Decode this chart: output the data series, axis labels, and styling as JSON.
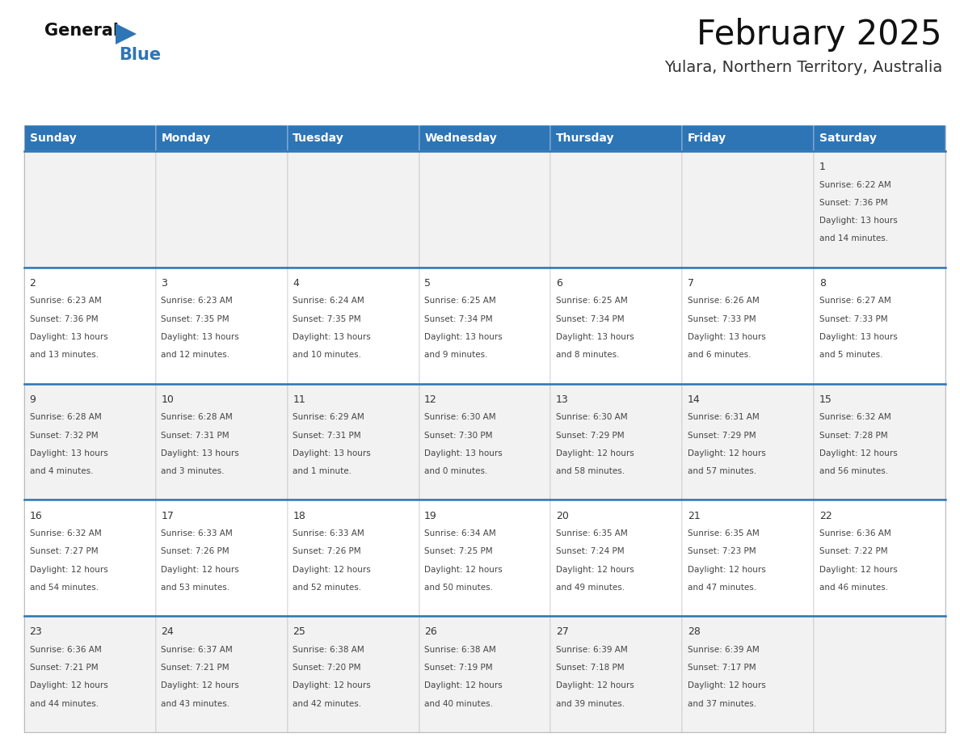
{
  "title": "February 2025",
  "subtitle": "Yulara, Northern Territory, Australia",
  "header_bg": "#2E75B6",
  "header_text_color": "#FFFFFF",
  "cell_bg_odd": "#F2F2F2",
  "cell_bg_even": "#FFFFFF",
  "border_color": "#2E75B6",
  "grid_color": "#AAAAAA",
  "text_color": "#444444",
  "day_num_color": "#333333",
  "day_headers": [
    "Sunday",
    "Monday",
    "Tuesday",
    "Wednesday",
    "Thursday",
    "Friday",
    "Saturday"
  ],
  "days": [
    {
      "day": 1,
      "col": 6,
      "row": 0,
      "sunrise": "6:22 AM",
      "sunset": "7:36 PM",
      "daylight_line1": "Daylight: 13 hours",
      "daylight_line2": "and 14 minutes."
    },
    {
      "day": 2,
      "col": 0,
      "row": 1,
      "sunrise": "6:23 AM",
      "sunset": "7:36 PM",
      "daylight_line1": "Daylight: 13 hours",
      "daylight_line2": "and 13 minutes."
    },
    {
      "day": 3,
      "col": 1,
      "row": 1,
      "sunrise": "6:23 AM",
      "sunset": "7:35 PM",
      "daylight_line1": "Daylight: 13 hours",
      "daylight_line2": "and 12 minutes."
    },
    {
      "day": 4,
      "col": 2,
      "row": 1,
      "sunrise": "6:24 AM",
      "sunset": "7:35 PM",
      "daylight_line1": "Daylight: 13 hours",
      "daylight_line2": "and 10 minutes."
    },
    {
      "day": 5,
      "col": 3,
      "row": 1,
      "sunrise": "6:25 AM",
      "sunset": "7:34 PM",
      "daylight_line1": "Daylight: 13 hours",
      "daylight_line2": "and 9 minutes."
    },
    {
      "day": 6,
      "col": 4,
      "row": 1,
      "sunrise": "6:25 AM",
      "sunset": "7:34 PM",
      "daylight_line1": "Daylight: 13 hours",
      "daylight_line2": "and 8 minutes."
    },
    {
      "day": 7,
      "col": 5,
      "row": 1,
      "sunrise": "6:26 AM",
      "sunset": "7:33 PM",
      "daylight_line1": "Daylight: 13 hours",
      "daylight_line2": "and 6 minutes."
    },
    {
      "day": 8,
      "col": 6,
      "row": 1,
      "sunrise": "6:27 AM",
      "sunset": "7:33 PM",
      "daylight_line1": "Daylight: 13 hours",
      "daylight_line2": "and 5 minutes."
    },
    {
      "day": 9,
      "col": 0,
      "row": 2,
      "sunrise": "6:28 AM",
      "sunset": "7:32 PM",
      "daylight_line1": "Daylight: 13 hours",
      "daylight_line2": "and 4 minutes."
    },
    {
      "day": 10,
      "col": 1,
      "row": 2,
      "sunrise": "6:28 AM",
      "sunset": "7:31 PM",
      "daylight_line1": "Daylight: 13 hours",
      "daylight_line2": "and 3 minutes."
    },
    {
      "day": 11,
      "col": 2,
      "row": 2,
      "sunrise": "6:29 AM",
      "sunset": "7:31 PM",
      "daylight_line1": "Daylight: 13 hours",
      "daylight_line2": "and 1 minute."
    },
    {
      "day": 12,
      "col": 3,
      "row": 2,
      "sunrise": "6:30 AM",
      "sunset": "7:30 PM",
      "daylight_line1": "Daylight: 13 hours",
      "daylight_line2": "and 0 minutes."
    },
    {
      "day": 13,
      "col": 4,
      "row": 2,
      "sunrise": "6:30 AM",
      "sunset": "7:29 PM",
      "daylight_line1": "Daylight: 12 hours",
      "daylight_line2": "and 58 minutes."
    },
    {
      "day": 14,
      "col": 5,
      "row": 2,
      "sunrise": "6:31 AM",
      "sunset": "7:29 PM",
      "daylight_line1": "Daylight: 12 hours",
      "daylight_line2": "and 57 minutes."
    },
    {
      "day": 15,
      "col": 6,
      "row": 2,
      "sunrise": "6:32 AM",
      "sunset": "7:28 PM",
      "daylight_line1": "Daylight: 12 hours",
      "daylight_line2": "and 56 minutes."
    },
    {
      "day": 16,
      "col": 0,
      "row": 3,
      "sunrise": "6:32 AM",
      "sunset": "7:27 PM",
      "daylight_line1": "Daylight: 12 hours",
      "daylight_line2": "and 54 minutes."
    },
    {
      "day": 17,
      "col": 1,
      "row": 3,
      "sunrise": "6:33 AM",
      "sunset": "7:26 PM",
      "daylight_line1": "Daylight: 12 hours",
      "daylight_line2": "and 53 minutes."
    },
    {
      "day": 18,
      "col": 2,
      "row": 3,
      "sunrise": "6:33 AM",
      "sunset": "7:26 PM",
      "daylight_line1": "Daylight: 12 hours",
      "daylight_line2": "and 52 minutes."
    },
    {
      "day": 19,
      "col": 3,
      "row": 3,
      "sunrise": "6:34 AM",
      "sunset": "7:25 PM",
      "daylight_line1": "Daylight: 12 hours",
      "daylight_line2": "and 50 minutes."
    },
    {
      "day": 20,
      "col": 4,
      "row": 3,
      "sunrise": "6:35 AM",
      "sunset": "7:24 PM",
      "daylight_line1": "Daylight: 12 hours",
      "daylight_line2": "and 49 minutes."
    },
    {
      "day": 21,
      "col": 5,
      "row": 3,
      "sunrise": "6:35 AM",
      "sunset": "7:23 PM",
      "daylight_line1": "Daylight: 12 hours",
      "daylight_line2": "and 47 minutes."
    },
    {
      "day": 22,
      "col": 6,
      "row": 3,
      "sunrise": "6:36 AM",
      "sunset": "7:22 PM",
      "daylight_line1": "Daylight: 12 hours",
      "daylight_line2": "and 46 minutes."
    },
    {
      "day": 23,
      "col": 0,
      "row": 4,
      "sunrise": "6:36 AM",
      "sunset": "7:21 PM",
      "daylight_line1": "Daylight: 12 hours",
      "daylight_line2": "and 44 minutes."
    },
    {
      "day": 24,
      "col": 1,
      "row": 4,
      "sunrise": "6:37 AM",
      "sunset": "7:21 PM",
      "daylight_line1": "Daylight: 12 hours",
      "daylight_line2": "and 43 minutes."
    },
    {
      "day": 25,
      "col": 2,
      "row": 4,
      "sunrise": "6:38 AM",
      "sunset": "7:20 PM",
      "daylight_line1": "Daylight: 12 hours",
      "daylight_line2": "and 42 minutes."
    },
    {
      "day": 26,
      "col": 3,
      "row": 4,
      "sunrise": "6:38 AM",
      "sunset": "7:19 PM",
      "daylight_line1": "Daylight: 12 hours",
      "daylight_line2": "and 40 minutes."
    },
    {
      "day": 27,
      "col": 4,
      "row": 4,
      "sunrise": "6:39 AM",
      "sunset": "7:18 PM",
      "daylight_line1": "Daylight: 12 hours",
      "daylight_line2": "and 39 minutes."
    },
    {
      "day": 28,
      "col": 5,
      "row": 4,
      "sunrise": "6:39 AM",
      "sunset": "7:17 PM",
      "daylight_line1": "Daylight: 12 hours",
      "daylight_line2": "and 37 minutes."
    }
  ],
  "num_rows": 5,
  "num_cols": 7,
  "title_fontsize": 30,
  "subtitle_fontsize": 14,
  "header_fontsize": 10,
  "day_num_fontsize": 9,
  "cell_text_fontsize": 7.5
}
